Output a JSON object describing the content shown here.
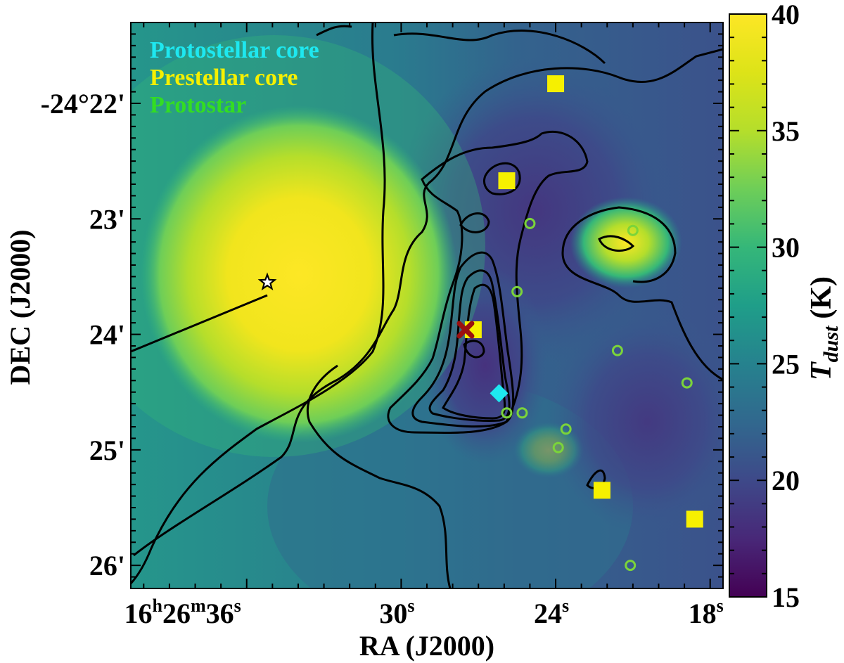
{
  "chart_data": {
    "type": "heatmap",
    "title": "",
    "xlabel": "RA (J2000)",
    "ylabel": "DEC (J2000)",
    "colorbar": {
      "label_main": "T",
      "label_sub": "dust",
      "label_unit": "(K)",
      "colormap": "viridis",
      "range": [
        15,
        40
      ],
      "ticks": [
        {
          "value": 15,
          "label": "15"
        },
        {
          "value": 20,
          "label": "20"
        },
        {
          "value": 25,
          "label": "25"
        },
        {
          "value": 30,
          "label": "30"
        },
        {
          "value": 35,
          "label": "35"
        },
        {
          "value": 40,
          "label": "40"
        }
      ]
    },
    "axes": {
      "x_range_sec": [
        40.5,
        17.5
      ],
      "y_range_arcmin": [
        21.3,
        26.2
      ],
      "x_ticks": [
        {
          "sec": 36,
          "h": "16",
          "m": "26",
          "s": "36",
          "label_type": "full"
        },
        {
          "sec": 30,
          "s": "30",
          "label_type": "sec"
        },
        {
          "sec": 24,
          "s": "24",
          "label_type": "sec"
        },
        {
          "sec": 18,
          "s": "18",
          "label_type": "sec"
        }
      ],
      "y_ticks": [
        {
          "arcmin": 22,
          "label": "-24°22'"
        },
        {
          "arcmin": 23,
          "label": "23'"
        },
        {
          "arcmin": 24,
          "label": "24'"
        },
        {
          "arcmin": 25,
          "label": "25'"
        },
        {
          "arcmin": 26,
          "label": "26'"
        }
      ]
    },
    "legend": {
      "position": "top-left",
      "entries": [
        {
          "label": "Protostellar core",
          "color": "#1ee8f0"
        },
        {
          "label": "Prestellar core",
          "color": "#f6f000"
        },
        {
          "label": "Protostar",
          "color": "#33dd22"
        }
      ]
    },
    "markers": {
      "prestellar_cores": [
        {
          "ra_s": 24.0,
          "dec_m": 21.83
        },
        {
          "ra_s": 25.9,
          "dec_m": 22.67
        },
        {
          "ra_s": 27.2,
          "dec_m": 23.96
        },
        {
          "ra_s": 22.2,
          "dec_m": 25.35
        },
        {
          "ra_s": 18.6,
          "dec_m": 25.6
        }
      ],
      "protostellar_cores": [
        {
          "ra_s": 26.2,
          "dec_m": 24.51
        }
      ],
      "protostars": [
        {
          "ra_s": 25.0,
          "dec_m": 23.04
        },
        {
          "ra_s": 21.0,
          "dec_m": 23.1
        },
        {
          "ra_s": 25.5,
          "dec_m": 23.63
        },
        {
          "ra_s": 21.6,
          "dec_m": 24.14
        },
        {
          "ra_s": 18.9,
          "dec_m": 24.42
        },
        {
          "ra_s": 25.9,
          "dec_m": 24.68
        },
        {
          "ra_s": 25.3,
          "dec_m": 24.68
        },
        {
          "ra_s": 23.6,
          "dec_m": 24.82
        },
        {
          "ra_s": 23.9,
          "dec_m": 24.98
        },
        {
          "ra_s": 21.1,
          "dec_m": 26.0
        }
      ],
      "star": {
        "ra_s": 35.2,
        "dec_m": 23.55
      },
      "cross": {
        "ra_s": 27.5,
        "dec_m": 23.96
      }
    }
  }
}
